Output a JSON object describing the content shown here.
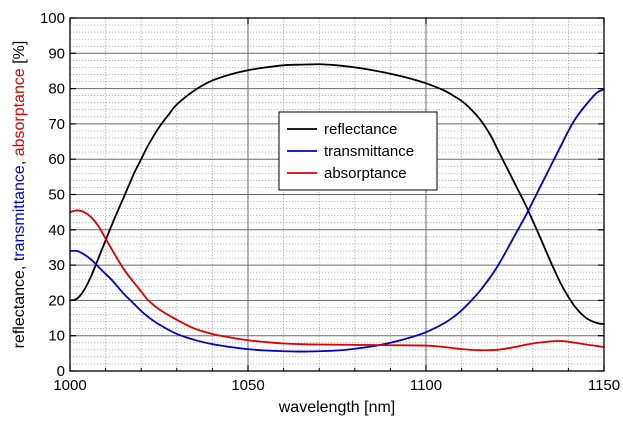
{
  "chart_data": {
    "type": "line",
    "xlabel": "wavelength [nm]",
    "ylabel_parts": [
      {
        "text": "reflectance, ",
        "color": "#000000"
      },
      {
        "text": "transmittance",
        "color": "#0000cc"
      },
      {
        "text": ", ",
        "color": "#000000"
      },
      {
        "text": "absorptance",
        "color": "#dd0000"
      },
      {
        "text": " [%]",
        "color": "#000000"
      }
    ],
    "xlim": [
      1000,
      1150
    ],
    "ylim": [
      0,
      100
    ],
    "xticks": [
      1000,
      1050,
      1100,
      1150
    ],
    "xtick_labels": [
      "1000",
      "1050",
      "1100",
      "1150"
    ],
    "yticks": [
      0,
      10,
      20,
      30,
      40,
      50,
      60,
      70,
      80,
      90,
      100
    ],
    "ytick_labels": [
      "0",
      "10",
      "20",
      "30",
      "40",
      "50",
      "60",
      "70",
      "80",
      "90",
      "100"
    ],
    "grid": "major solid, minor dotted",
    "legend_position": "upper-center",
    "series": [
      {
        "name": "reflectance",
        "color": "#000000",
        "x": [
          1000,
          1002,
          1004,
          1006,
          1008,
          1010,
          1012,
          1015,
          1018,
          1020,
          1022,
          1025,
          1028,
          1030,
          1035,
          1040,
          1045,
          1050,
          1055,
          1060,
          1065,
          1070,
          1075,
          1080,
          1085,
          1090,
          1095,
          1100,
          1105,
          1108,
          1110,
          1112,
          1115,
          1118,
          1120,
          1122,
          1125,
          1128,
          1130,
          1132,
          1135,
          1138,
          1140,
          1142,
          1145,
          1148,
          1150
        ],
        "y": [
          20,
          20.5,
          23,
          27,
          32,
          37,
          42,
          49,
          56,
          60,
          64,
          69,
          73,
          75.5,
          79.5,
          82.3,
          84,
          85.2,
          86,
          86.6,
          86.8,
          86.9,
          86.6,
          86,
          85.2,
          84.2,
          83,
          81.5,
          79.5,
          77.8,
          76.5,
          74.8,
          71.5,
          67,
          63,
          59,
          53,
          47,
          42.5,
          38,
          31,
          24.5,
          21,
          18,
          15,
          13.6,
          13.3
        ]
      },
      {
        "name": "transmittance",
        "color": "#0000cc",
        "x": [
          1000,
          1002,
          1004,
          1006,
          1008,
          1010,
          1012,
          1015,
          1018,
          1020,
          1022,
          1025,
          1030,
          1035,
          1040,
          1045,
          1050,
          1055,
          1060,
          1065,
          1070,
          1075,
          1080,
          1085,
          1090,
          1095,
          1100,
          1105,
          1108,
          1110,
          1112,
          1115,
          1118,
          1120,
          1122,
          1125,
          1128,
          1130,
          1132,
          1135,
          1138,
          1140,
          1142,
          1145,
          1148,
          1150
        ],
        "y": [
          34,
          34,
          33,
          31.5,
          29.5,
          27.5,
          25.5,
          22,
          19,
          17,
          15.3,
          13.2,
          10.5,
          8.8,
          7.6,
          6.8,
          6.2,
          5.8,
          5.6,
          5.5,
          5.6,
          5.8,
          6.3,
          7,
          8,
          9.3,
          11,
          13.5,
          15.5,
          17.2,
          19.2,
          22.5,
          26.5,
          29.5,
          33,
          38.5,
          44,
          48,
          52,
          58,
          64,
          68,
          71.5,
          75.5,
          78.8,
          79.8
        ]
      },
      {
        "name": "absorptance",
        "color": "#dd0000",
        "x": [
          1000,
          1002,
          1004,
          1006,
          1008,
          1010,
          1012,
          1015,
          1018,
          1020,
          1022,
          1025,
          1030,
          1035,
          1040,
          1045,
          1050,
          1055,
          1060,
          1065,
          1070,
          1080,
          1090,
          1100,
          1105,
          1110,
          1115,
          1120,
          1125,
          1130,
          1135,
          1138,
          1140,
          1145,
          1150
        ],
        "y": [
          45,
          45.5,
          45,
          43.5,
          41,
          37.5,
          34,
          29,
          25,
          22.5,
          20,
          17.5,
          14.5,
          12,
          10.5,
          9.5,
          8.7,
          8.2,
          7.8,
          7.6,
          7.5,
          7.4,
          7.3,
          7.2,
          6.8,
          6.2,
          5.9,
          6,
          6.8,
          7.8,
          8.4,
          8.5,
          8.3,
          7.5,
          6.8
        ]
      }
    ]
  }
}
